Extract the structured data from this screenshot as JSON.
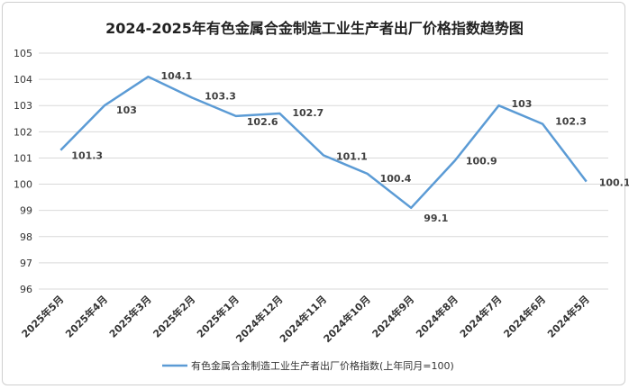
{
  "chart_data": {
    "type": "line",
    "title": "2024-2025年有色金属合金制造工业生产者出厂价格指数趋势图",
    "categories": [
      "2025年5月",
      "2025年4月",
      "2025年3月",
      "2025年2月",
      "2025年1月",
      "2024年12月",
      "2024年11月",
      "2024年10月",
      "2024年9月",
      "2024年8月",
      "2024年7月",
      "2024年6月",
      "2024年5月"
    ],
    "series": [
      {
        "name": "有色金属合金制造工业生产者出厂价格指数(上年同月=100)",
        "values": [
          101.3,
          103,
          104.1,
          103.3,
          102.6,
          102.7,
          101.1,
          100.4,
          99.1,
          100.9,
          103,
          102.3,
          100.1
        ],
        "color": "#5b9bd5"
      }
    ],
    "ylim": [
      96,
      105
    ],
    "yticks": [
      96,
      97,
      98,
      99,
      100,
      101,
      102,
      103,
      104,
      105
    ],
    "grid": true,
    "legend_position": "bottom"
  }
}
